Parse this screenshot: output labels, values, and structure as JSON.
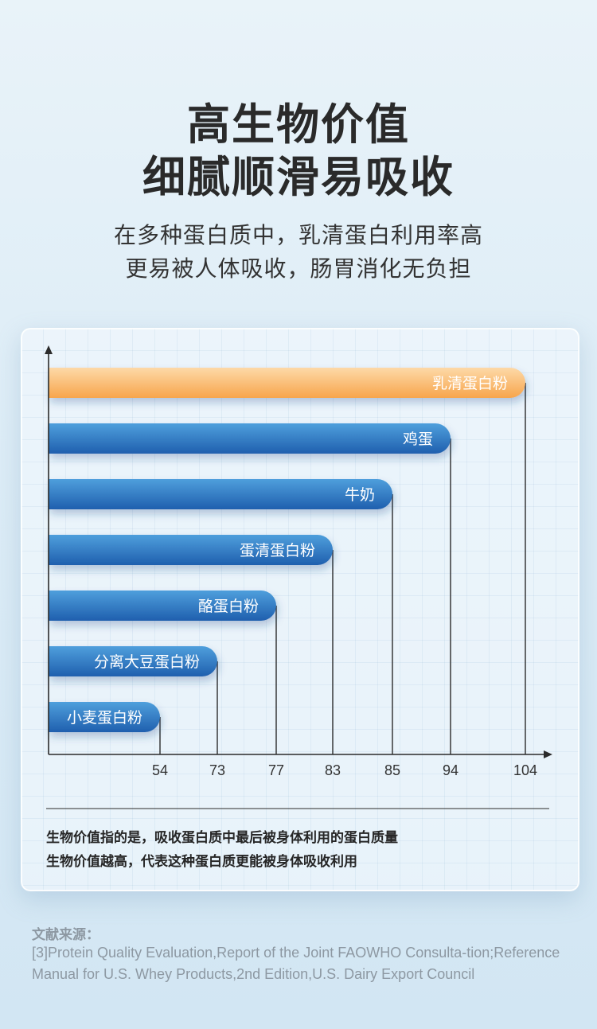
{
  "header": {
    "title_line1": "高生物价值",
    "title_line2": "细腻顺滑易吸收",
    "subtitle_line1": "在多种蛋白质中，乳清蛋白利用率高",
    "subtitle_line2": "更易被人体吸收，肠胃消化无负担"
  },
  "chart_data": {
    "type": "bar",
    "orientation": "horizontal",
    "categories": [
      "乳清蛋白粉",
      "鸡蛋",
      "牛奶",
      "蛋清蛋白粉",
      "酪蛋白粉",
      "分离大豆蛋白粉",
      "小麦蛋白粉"
    ],
    "values": [
      104,
      94,
      85,
      83,
      77,
      73,
      54
    ],
    "tick_labels": [
      "54",
      "73",
      "77",
      "83",
      "85",
      "94",
      "104"
    ],
    "title": "",
    "xlabel": "",
    "ylabel": "",
    "colors": {
      "highlight": "#f7a54c",
      "highlight_light": "#fdd9a8",
      "bar": "#1f5fae",
      "bar_light": "#4f9fdc"
    }
  },
  "notes": {
    "line1": "生物价值指的是，吸收蛋白质中最后被身体利用的蛋白质量",
    "line2": "生物价值越高，代表这种蛋白质更能被身体吸收利用"
  },
  "references": {
    "title": "文献来源：",
    "body": "[3]Protein Quality Evaluation,Report of the Joint FAOWHO Consulta-tion;Reference Manual for U.S. Whey Products,2nd Edition,U.S. Dairy Export Council"
  }
}
